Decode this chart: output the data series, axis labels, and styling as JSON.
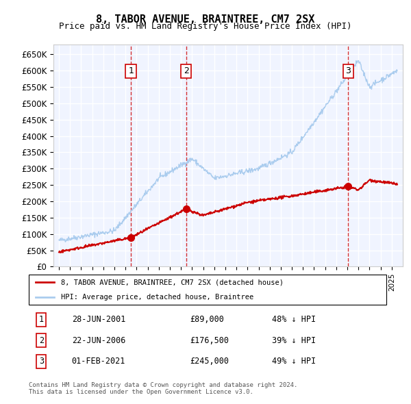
{
  "title": "8, TABOR AVENUE, BRAINTREE, CM7 2SX",
  "subtitle": "Price paid vs. HM Land Registry's House Price Index (HPI)",
  "xlabel": "",
  "ylabel": "",
  "ylim": [
    0,
    680000
  ],
  "yticks": [
    0,
    50000,
    100000,
    150000,
    200000,
    250000,
    300000,
    350000,
    400000,
    450000,
    500000,
    550000,
    600000,
    650000
  ],
  "ytick_labels": [
    "£0",
    "£50K",
    "£100K",
    "£150K",
    "£200K",
    "£250K",
    "£300K",
    "£350K",
    "£400K",
    "£450K",
    "£500K",
    "£550K",
    "£600K",
    "£650K"
  ],
  "bg_color": "#f0f4ff",
  "plot_bg": "#f0f4ff",
  "grid_color": "#ffffff",
  "sale_points": [
    {
      "date_num": 2001.49,
      "price": 89000,
      "label": "1"
    },
    {
      "date_num": 2006.47,
      "price": 176500,
      "label": "2"
    },
    {
      "date_num": 2021.08,
      "price": 245000,
      "label": "3"
    }
  ],
  "legend_entries": [
    {
      "label": "8, TABOR AVENUE, BRAINTREE, CM7 2SX (detached house)",
      "color": "#cc0000"
    },
    {
      "label": "HPI: Average price, detached house, Braintree",
      "color": "#aaccee"
    }
  ],
  "table_rows": [
    {
      "num": "1",
      "date": "28-JUN-2001",
      "price": "£89,000",
      "note": "48% ↓ HPI"
    },
    {
      "num": "2",
      "date": "22-JUN-2006",
      "price": "£176,500",
      "note": "39% ↓ HPI"
    },
    {
      "num": "3",
      "date": "01-FEB-2021",
      "price": "£245,000",
      "note": "49% ↓ HPI"
    }
  ],
  "footer": "Contains HM Land Registry data © Crown copyright and database right 2024.\nThis data is licensed under the Open Government Licence v3.0.",
  "vline_color": "#cc0000",
  "sale_marker_color": "#cc0000",
  "hpi_line_color": "#aaccee",
  "price_line_color": "#cc0000"
}
